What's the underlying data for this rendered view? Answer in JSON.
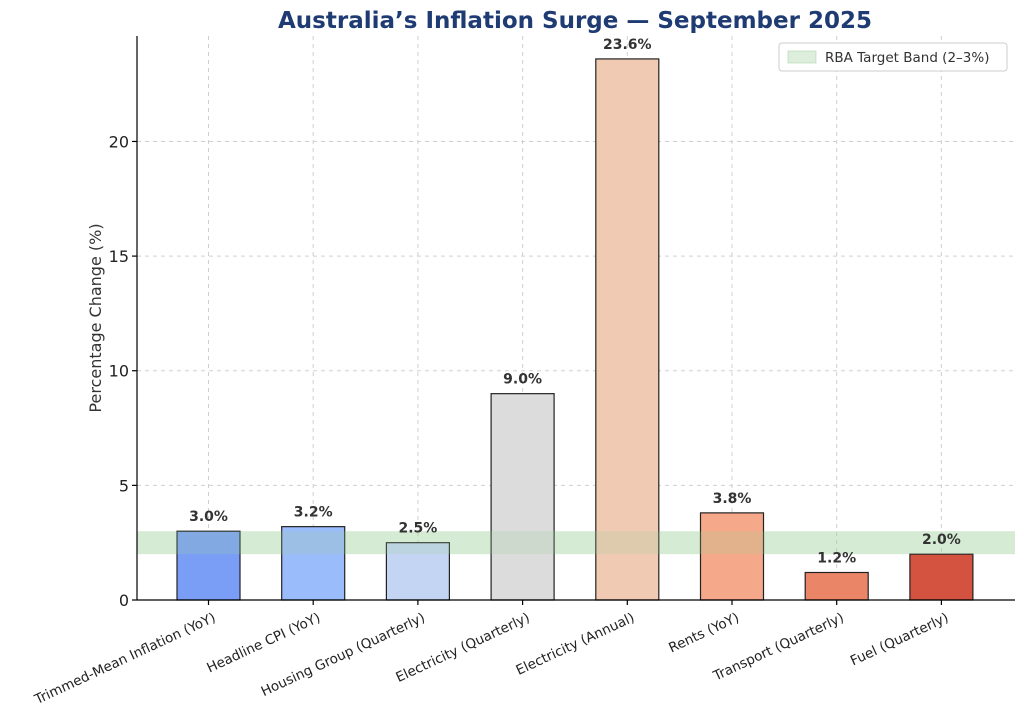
{
  "chart_data": {
    "type": "bar",
    "title": "Australia’s Inflation Surge — September 2025",
    "xlabel": "",
    "ylabel": "Percentage Change (%)",
    "ylim": [
      0,
      24.6
    ],
    "yticks": [
      0,
      5,
      10,
      15,
      20
    ],
    "grid": true,
    "legend_position": "top-right",
    "categories": [
      "Trimmed-Mean Inflation (YoY)",
      "Headline CPI (YoY)",
      "Housing Group (Quarterly)",
      "Electricity (Quarterly)",
      "Electricity (Annual)",
      "Rents (YoY)",
      "Transport (Quarterly)",
      "Fuel (Quarterly)"
    ],
    "values": [
      3.0,
      3.2,
      2.5,
      9.0,
      23.6,
      3.8,
      1.2,
      2.0
    ],
    "data_labels": [
      "3.0%",
      "3.2%",
      "2.5%",
      "9.0%",
      "23.6%",
      "3.8%",
      "1.2%",
      "2.0%"
    ],
    "bar_colors": [
      "#7a9ef5",
      "#9bbcfa",
      "#c3d5f3",
      "#dcdcdc",
      "#f0cab3",
      "#f5a98a",
      "#ea8568",
      "#d45340"
    ],
    "bar_opacities": [
      1,
      1,
      1,
      1,
      1,
      1,
      1,
      1
    ],
    "target_band": {
      "label": "RBA Target Band (2–3%)",
      "low": 2,
      "high": 3,
      "color": "#9fd09a"
    }
  }
}
